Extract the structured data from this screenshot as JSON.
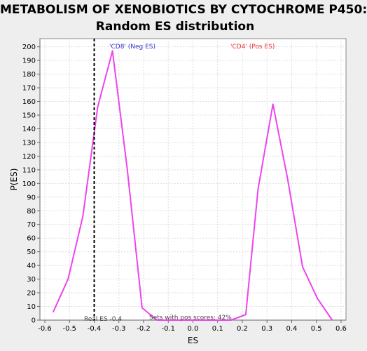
{
  "chart_data": {
    "type": "line",
    "title_line1": "METABOLISM OF XENOBIOTICS BY CYTOCHROME P450:",
    "title_line2": "Random ES distribution",
    "xlabel": "ES",
    "ylabel": "P(ES)",
    "xlim": [
      -0.62,
      0.62
    ],
    "ylim": [
      0,
      206
    ],
    "xticks": [
      -0.6,
      -0.5,
      -0.4,
      -0.3,
      -0.2,
      -0.1,
      0.0,
      0.1,
      0.2,
      0.3,
      0.4,
      0.5,
      0.6
    ],
    "xtick_labels": [
      "-0.6",
      "-0.5",
      "-0.4",
      "-0.3",
      "-0.2",
      "-0.1",
      "0.0",
      "0.1",
      "0.2",
      "0.3",
      "0.4",
      "0.5",
      "0.6"
    ],
    "yticks": [
      0,
      10,
      20,
      30,
      40,
      50,
      60,
      70,
      80,
      90,
      100,
      110,
      120,
      130,
      140,
      150,
      160,
      170,
      180,
      190,
      200
    ],
    "grid": true,
    "series": [
      {
        "color": "#ee44ee",
        "x": [
          -0.566,
          -0.506,
          -0.446,
          -0.386,
          -0.326,
          -0.266,
          -0.206,
          -0.146,
          -0.086,
          -0.026,
          0.034,
          0.094,
          0.154,
          0.214,
          0.264,
          0.324,
          0.384,
          0.444,
          0.504,
          0.564
        ],
        "y": [
          6,
          30,
          76,
          156,
          197,
          110,
          9,
          0,
          0,
          0,
          0,
          0,
          0,
          4,
          96,
          158,
          103,
          39,
          16,
          0
        ]
      }
    ],
    "real_es": {
      "x": -0.4,
      "label": "Real ES -0.4",
      "color": "#000000"
    },
    "annotations": {
      "neg_label": "'CD8' (Neg ES)",
      "neg_color": "#3333cc",
      "pos_label": "'CD4' (Pos ES)",
      "pos_color": "#ee3333",
      "pos_scores": "Sets with pos scores: 42%"
    }
  }
}
